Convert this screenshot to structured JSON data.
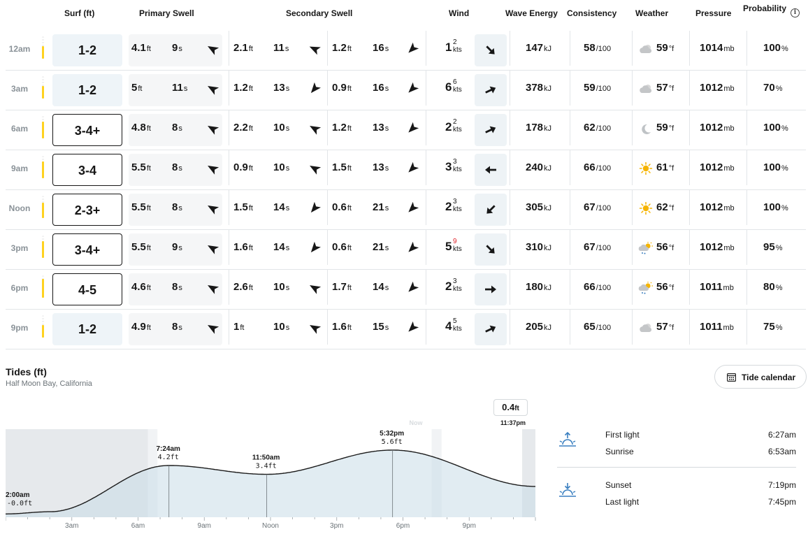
{
  "headers": {
    "surf": "Surf (ft)",
    "primary_swell": "Primary Swell",
    "secondary_swell": "Secondary Swell",
    "wind": "Wind",
    "wave_energy": "Wave Energy",
    "consistency": "Consistency",
    "weather": "Weather",
    "pressure": "Pressure",
    "probability": "Probability"
  },
  "units": {
    "ft": "ft",
    "s": "s",
    "kts": "kts",
    "kj": "kJ",
    "per100": "/100",
    "degf": "°f",
    "mb": "mb",
    "pct": "%"
  },
  "colors": {
    "rating_bar": "#ffd21f",
    "gust_highlight": "#e0242b",
    "surf_flat_bg": "#eef4f8",
    "tide_fill": "#dde9ef",
    "night_shade": "#e6e9ec"
  },
  "rows": [
    {
      "time": "12am",
      "rating": 0.55,
      "surf": "1-2",
      "surf_style": "flat",
      "p_ht": "4.1",
      "p_per": "9",
      "p_dir": 300,
      "s1_ht": "2.1",
      "s1_per": "11",
      "s1_dir": 295,
      "s2_ht": "1.2",
      "s2_per": "16",
      "s2_dir": 225,
      "wind": "1",
      "wind_sup": "2",
      "wind_sup_gust": false,
      "wind_dir": 135,
      "energy": "147",
      "consistency": "58",
      "weather_icon": "cloudy-icon",
      "temp": "59",
      "pressure": "1014",
      "prob": "100"
    },
    {
      "time": "3am",
      "rating": 0.55,
      "surf": "1-2",
      "surf_style": "flat",
      "p_ht": "5",
      "p_per": "11",
      "p_dir": 300,
      "s1_ht": "1.2",
      "s1_per": "13",
      "s1_dir": 220,
      "s2_ht": "0.9",
      "s2_per": "16",
      "s2_dir": 225,
      "wind": "6",
      "wind_sup": "6",
      "wind_sup_gust": false,
      "wind_dir": 65,
      "energy": "378",
      "consistency": "59",
      "weather_icon": "cloudy-icon",
      "temp": "57",
      "pressure": "1012",
      "prob": "70"
    },
    {
      "time": "6am",
      "rating": 0.75,
      "surf": "3-4+",
      "surf_style": "box",
      "p_ht": "4.8",
      "p_per": "8",
      "p_dir": 300,
      "s1_ht": "2.2",
      "s1_per": "10",
      "s1_dir": 300,
      "s2_ht": "1.2",
      "s2_per": "13",
      "s2_dir": 225,
      "wind": "2",
      "wind_sup": "2",
      "wind_sup_gust": false,
      "wind_dir": 65,
      "energy": "178",
      "consistency": "62",
      "weather_icon": "moon-icon",
      "temp": "59",
      "pressure": "1012",
      "prob": "100"
    },
    {
      "time": "9am",
      "rating": 0.75,
      "surf": "3-4",
      "surf_style": "box",
      "p_ht": "5.5",
      "p_per": "8",
      "p_dir": 300,
      "s1_ht": "0.9",
      "s1_per": "10",
      "s1_dir": 300,
      "s2_ht": "1.5",
      "s2_per": "13",
      "s2_dir": 225,
      "wind": "3",
      "wind_sup": "3",
      "wind_sup_gust": false,
      "wind_dir": 270,
      "energy": "240",
      "consistency": "66",
      "weather_icon": "sun-icon",
      "temp": "61",
      "pressure": "1012",
      "prob": "100"
    },
    {
      "time": "Noon",
      "rating": 0.7,
      "surf": "2-3+",
      "surf_style": "box",
      "p_ht": "5.5",
      "p_per": "8",
      "p_dir": 300,
      "s1_ht": "1.5",
      "s1_per": "14",
      "s1_dir": 220,
      "s2_ht": "0.6",
      "s2_per": "21",
      "s2_dir": 225,
      "wind": "2",
      "wind_sup": "3",
      "wind_sup_gust": false,
      "wind_dir": 225,
      "energy": "305",
      "consistency": "67",
      "weather_icon": "sun-icon",
      "temp": "62",
      "pressure": "1012",
      "prob": "100"
    },
    {
      "time": "3pm",
      "rating": 0.75,
      "surf": "3-4+",
      "surf_style": "box",
      "p_ht": "5.5",
      "p_per": "9",
      "p_dir": 300,
      "s1_ht": "1.6",
      "s1_per": "14",
      "s1_dir": 220,
      "s2_ht": "0.6",
      "s2_per": "21",
      "s2_dir": 225,
      "wind": "5",
      "wind_sup": "9",
      "wind_sup_gust": true,
      "wind_dir": 135,
      "energy": "310",
      "consistency": "67",
      "weather_icon": "sun-shower-icon",
      "temp": "56",
      "pressure": "1012",
      "prob": "95"
    },
    {
      "time": "6pm",
      "rating": 0.85,
      "surf": "4-5",
      "surf_style": "box",
      "p_ht": "4.6",
      "p_per": "8",
      "p_dir": 300,
      "s1_ht": "2.6",
      "s1_per": "10",
      "s1_dir": 300,
      "s2_ht": "1.7",
      "s2_per": "14",
      "s2_dir": 225,
      "wind": "2",
      "wind_sup": "3",
      "wind_sup_gust": false,
      "wind_dir": 90,
      "energy": "180",
      "consistency": "66",
      "weather_icon": "sun-shower-icon",
      "temp": "56",
      "pressure": "1011",
      "prob": "80"
    },
    {
      "time": "9pm",
      "rating": 0.55,
      "surf": "1-2",
      "surf_style": "flat",
      "p_ht": "4.9",
      "p_per": "8",
      "p_dir": 300,
      "s1_ht": "1",
      "s1_per": "10",
      "s1_dir": 300,
      "s2_ht": "1.6",
      "s2_per": "15",
      "s2_dir": 225,
      "wind": "4",
      "wind_sup": "5",
      "wind_sup_gust": false,
      "wind_dir": 65,
      "energy": "205",
      "consistency": "65",
      "weather_icon": "cloudy-icon",
      "temp": "57",
      "pressure": "1011",
      "prob": "75"
    }
  ],
  "tides": {
    "title": "Tides (ft)",
    "location": "Half Moon Bay, California",
    "calendar_button": "Tide calendar",
    "now_label": "Now",
    "current": {
      "value": "0.4",
      "unit": "ft",
      "time": "11:37pm"
    },
    "hour_range": [
      0,
      24
    ],
    "height_range": [
      -0.5,
      7.5
    ],
    "night_periods": [
      [
        0,
        6.45
      ],
      [
        23.4,
        24
      ]
    ],
    "twilight_periods": [
      [
        6.45,
        6.88
      ],
      [
        19.3,
        19.75
      ]
    ],
    "extremes": [
      {
        "time": "2:00am",
        "height": "-0.0ft",
        "h": 2.0,
        "v": 0.0
      },
      {
        "time": "7:24am",
        "height": "4.2ft",
        "h": 7.4,
        "v": 4.2
      },
      {
        "time": "11:50am",
        "height": "3.4ft",
        "h": 11.83,
        "v": 3.4
      },
      {
        "time": "5:32pm",
        "height": "5.6ft",
        "h": 17.53,
        "v": 5.6
      }
    ],
    "end_point": {
      "h": 24,
      "v": 2.3
    },
    "axis_labels": [
      {
        "label": "3am",
        "h": 3
      },
      {
        "label": "6am",
        "h": 6
      },
      {
        "label": "9am",
        "h": 9
      },
      {
        "label": "Noon",
        "h": 12
      },
      {
        "label": "3pm",
        "h": 15
      },
      {
        "label": "6pm",
        "h": 18
      },
      {
        "label": "9pm",
        "h": 21
      }
    ]
  },
  "sun": {
    "first_light_label": "First light",
    "first_light": "6:27am",
    "sunrise_label": "Sunrise",
    "sunrise": "6:53am",
    "sunset_label": "Sunset",
    "sunset": "7:19pm",
    "last_light_label": "Last light",
    "last_light": "7:45pm"
  }
}
